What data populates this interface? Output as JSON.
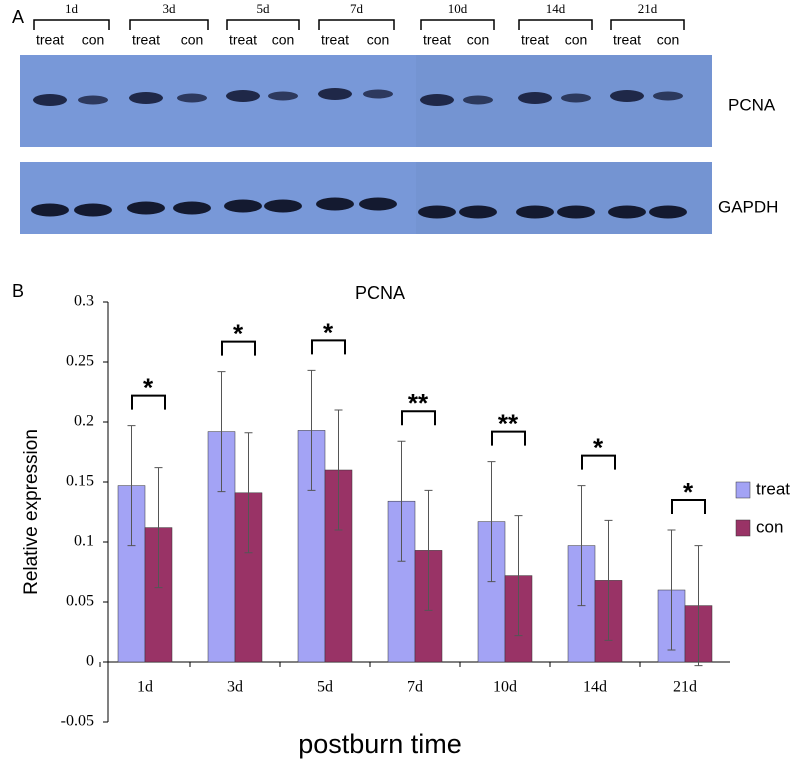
{
  "panel_a": {
    "label": "A",
    "times": [
      "1d",
      "3d",
      "5d",
      "7d",
      "10d",
      "14d",
      "21d"
    ],
    "lane_labels": [
      "treat",
      "con"
    ],
    "rows": [
      "PCNA",
      "GAPDH"
    ]
  },
  "chart_data": {
    "type": "bar",
    "panel_label": "B",
    "title": "PCNA",
    "ylabel": "Relative expression",
    "xlabel": "postburn time",
    "categories": [
      "1d",
      "3d",
      "5d",
      "7d",
      "10d",
      "14d",
      "21d"
    ],
    "series": [
      {
        "name": "treat",
        "color": "#a3a3f5",
        "values": [
          0.147,
          0.192,
          0.193,
          0.134,
          0.117,
          0.097,
          0.06
        ],
        "errors": [
          0.05,
          0.05,
          0.05,
          0.05,
          0.05,
          0.05,
          0.05
        ]
      },
      {
        "name": "con",
        "color": "#993366",
        "values": [
          0.112,
          0.141,
          0.16,
          0.093,
          0.072,
          0.068,
          0.047
        ],
        "errors": [
          0.05,
          0.05,
          0.05,
          0.05,
          0.05,
          0.05,
          0.05
        ]
      }
    ],
    "significance": [
      "*",
      "*",
      "*",
      "**",
      "**",
      "*",
      "*"
    ],
    "ylim": [
      -0.05,
      0.3
    ],
    "yticks": [
      0.3,
      0.25,
      0.2,
      0.15,
      0.1,
      0.05,
      0,
      -0.05
    ],
    "legend": "right"
  }
}
